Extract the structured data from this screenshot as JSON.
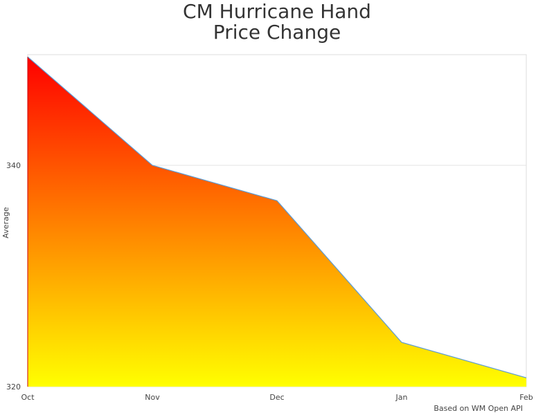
{
  "chart_data": {
    "type": "area",
    "title_lines": [
      "CM Hurricane Hand",
      "Price Change"
    ],
    "xlabel": "",
    "ylabel": "Average",
    "categories": [
      "Oct",
      "Nov",
      "Dec",
      "Jan",
      "Feb"
    ],
    "values": [
      349.8,
      340,
      336.8,
      324,
      320.8
    ],
    "ylim": [
      320,
      350
    ],
    "yticks": [
      320,
      340
    ],
    "grid": true,
    "legend": "none",
    "fill_gradient": {
      "top": "#ff0000",
      "bottom": "#ffff00"
    },
    "line_color": "#5b9bd5",
    "credit": "Based on WM Open API"
  }
}
